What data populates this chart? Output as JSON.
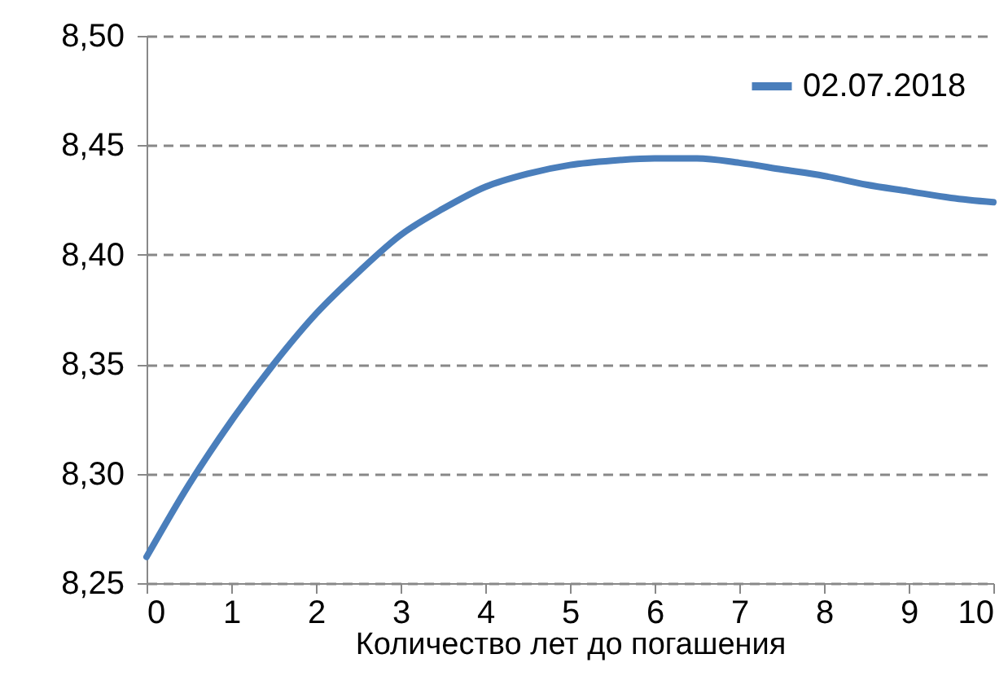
{
  "chart_data": {
    "type": "line",
    "xlabel": "Количество лет до погашения",
    "x": [
      0,
      0.5,
      1,
      1.5,
      2,
      2.5,
      3,
      3.5,
      4,
      4.5,
      5,
      5.5,
      6,
      6.5,
      7,
      7.5,
      8,
      8.5,
      9,
      9.5,
      10
    ],
    "series": [
      {
        "name": "02.07.2018",
        "color": "#4a7ebb",
        "values": [
          8.262,
          8.295,
          8.324,
          8.35,
          8.373,
          8.392,
          8.409,
          8.421,
          8.431,
          8.437,
          8.441,
          8.443,
          8.444,
          8.444,
          8.442,
          8.439,
          8.436,
          8.432,
          8.429,
          8.426,
          8.424
        ]
      }
    ],
    "xlim": [
      0,
      10
    ],
    "xticks": [
      0,
      1,
      2,
      3,
      4,
      5,
      6,
      7,
      8,
      9,
      10
    ],
    "ylim": [
      8.25,
      8.5
    ],
    "yticks": [
      {
        "value": 8.25,
        "label": "8,25"
      },
      {
        "value": 8.3,
        "label": "8,30"
      },
      {
        "value": 8.35,
        "label": "8,35"
      },
      {
        "value": 8.4,
        "label": "8,40"
      },
      {
        "value": 8.45,
        "label": "8,45"
      },
      {
        "value": 8.5,
        "label": "8,50"
      }
    ],
    "grid": "y",
    "legend": "top right",
    "marker": "none",
    "line_style": "solid"
  }
}
